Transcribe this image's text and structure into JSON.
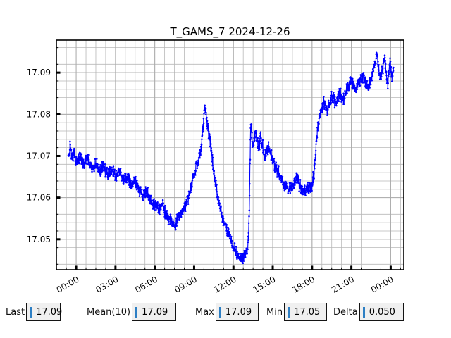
{
  "chart_data": {
    "type": "line",
    "title": "T_GAMS_7 2024-12-26",
    "series_name": "T_GAMS_7",
    "line_color": "#0000ff",
    "marker": "dot",
    "grid": "both",
    "legend": "none",
    "xlabel": "",
    "ylabel": "",
    "xlim_hours": [
      -1.51,
      25.0
    ],
    "ylim": [
      17.0427,
      17.0978
    ],
    "x_major_ticks_hours": [
      0,
      3,
      6,
      9,
      12,
      15,
      18,
      21,
      24
    ],
    "x_tick_labels": [
      "00:00",
      "03:00",
      "06:00",
      "09:00",
      "12:00",
      "15:00",
      "18:00",
      "21:00",
      "00:00"
    ],
    "x_minor_step_hours": 0.75,
    "y_major_ticks": [
      17.05,
      17.06,
      17.07,
      17.08,
      17.09
    ],
    "y_tick_labels": [
      "17.05",
      "17.06",
      "17.07",
      "17.08",
      "17.09"
    ],
    "y_minor_step": 0.002,
    "x_tick_label_rotation_deg": 30,
    "noise_amplitude": 0.0018,
    "sample_step_hours": 0.0167,
    "keypoints": [
      [
        -0.6,
        17.07
      ],
      [
        -0.45,
        17.072
      ],
      [
        -0.3,
        17.0695
      ],
      [
        -0.15,
        17.071
      ],
      [
        0.0,
        17.0685
      ],
      [
        0.3,
        17.07
      ],
      [
        0.6,
        17.068
      ],
      [
        0.9,
        17.0695
      ],
      [
        1.2,
        17.067
      ],
      [
        1.5,
        17.0685
      ],
      [
        1.8,
        17.0665
      ],
      [
        2.1,
        17.0675
      ],
      [
        2.4,
        17.0655
      ],
      [
        2.7,
        17.067
      ],
      [
        3.0,
        17.065
      ],
      [
        3.3,
        17.066
      ],
      [
        3.6,
        17.064
      ],
      [
        3.9,
        17.065
      ],
      [
        4.2,
        17.063
      ],
      [
        4.5,
        17.0645
      ],
      [
        4.8,
        17.062
      ],
      [
        5.1,
        17.0605
      ],
      [
        5.4,
        17.0615
      ],
      [
        5.7,
        17.059
      ],
      [
        6.0,
        17.0585
      ],
      [
        6.3,
        17.057
      ],
      [
        6.6,
        17.058
      ],
      [
        6.9,
        17.0555
      ],
      [
        7.2,
        17.0545
      ],
      [
        7.5,
        17.0535
      ],
      [
        7.8,
        17.055
      ],
      [
        8.1,
        17.056
      ],
      [
        8.4,
        17.0585
      ],
      [
        8.7,
        17.0615
      ],
      [
        9.0,
        17.0655
      ],
      [
        9.3,
        17.069
      ],
      [
        9.55,
        17.072
      ],
      [
        9.75,
        17.08
      ],
      [
        9.85,
        17.082
      ],
      [
        10.0,
        17.078
      ],
      [
        10.2,
        17.074
      ],
      [
        10.5,
        17.066
      ],
      [
        10.8,
        17.06
      ],
      [
        11.1,
        17.056
      ],
      [
        11.4,
        17.053
      ],
      [
        11.7,
        17.051
      ],
      [
        12.0,
        17.048
      ],
      [
        12.3,
        17.0465
      ],
      [
        12.6,
        17.0455
      ],
      [
        12.9,
        17.046
      ],
      [
        13.1,
        17.048
      ],
      [
        13.2,
        17.056
      ],
      [
        13.32,
        17.078
      ],
      [
        13.5,
        17.072
      ],
      [
        13.7,
        17.076
      ],
      [
        13.9,
        17.072
      ],
      [
        14.1,
        17.0745
      ],
      [
        14.4,
        17.07
      ],
      [
        14.7,
        17.072
      ],
      [
        15.0,
        17.069
      ],
      [
        15.3,
        17.0665
      ],
      [
        15.6,
        17.065
      ],
      [
        15.9,
        17.063
      ],
      [
        16.2,
        17.062
      ],
      [
        16.5,
        17.0625
      ],
      [
        16.8,
        17.0645
      ],
      [
        17.1,
        17.0625
      ],
      [
        17.4,
        17.0615
      ],
      [
        17.7,
        17.0625
      ],
      [
        17.95,
        17.062
      ],
      [
        18.15,
        17.066
      ],
      [
        18.4,
        17.076
      ],
      [
        18.6,
        17.08
      ],
      [
        18.9,
        17.083
      ],
      [
        19.2,
        17.081
      ],
      [
        19.5,
        17.0845
      ],
      [
        19.8,
        17.0825
      ],
      [
        20.1,
        17.085
      ],
      [
        20.4,
        17.0835
      ],
      [
        20.7,
        17.0865
      ],
      [
        21.0,
        17.088
      ],
      [
        21.3,
        17.086
      ],
      [
        21.6,
        17.0875
      ],
      [
        21.9,
        17.089
      ],
      [
        22.2,
        17.0865
      ],
      [
        22.5,
        17.0885
      ],
      [
        22.75,
        17.092
      ],
      [
        22.95,
        17.0945
      ],
      [
        23.15,
        17.089
      ],
      [
        23.35,
        17.0905
      ],
      [
        23.55,
        17.0935
      ],
      [
        23.75,
        17.087
      ],
      [
        23.95,
        17.092
      ],
      [
        24.1,
        17.089
      ],
      [
        24.23,
        17.0915
      ]
    ]
  },
  "stats": {
    "last": {
      "label": "Last",
      "value": "17.09"
    },
    "mean": {
      "label": "Mean(10)",
      "value": "17.09"
    },
    "max": {
      "label": "Max",
      "value": "17.09"
    },
    "min": {
      "label": "Min",
      "value": "17.05"
    },
    "delta": {
      "label": "Delta",
      "value": "0.050"
    }
  },
  "colors": {
    "line": "#0000ff",
    "grid": "#b8b8b8",
    "axis": "#000000",
    "box_bg": "#f0f0f0",
    "box_border": "#141414",
    "text_cursor_blue": "#2d7fc4"
  }
}
